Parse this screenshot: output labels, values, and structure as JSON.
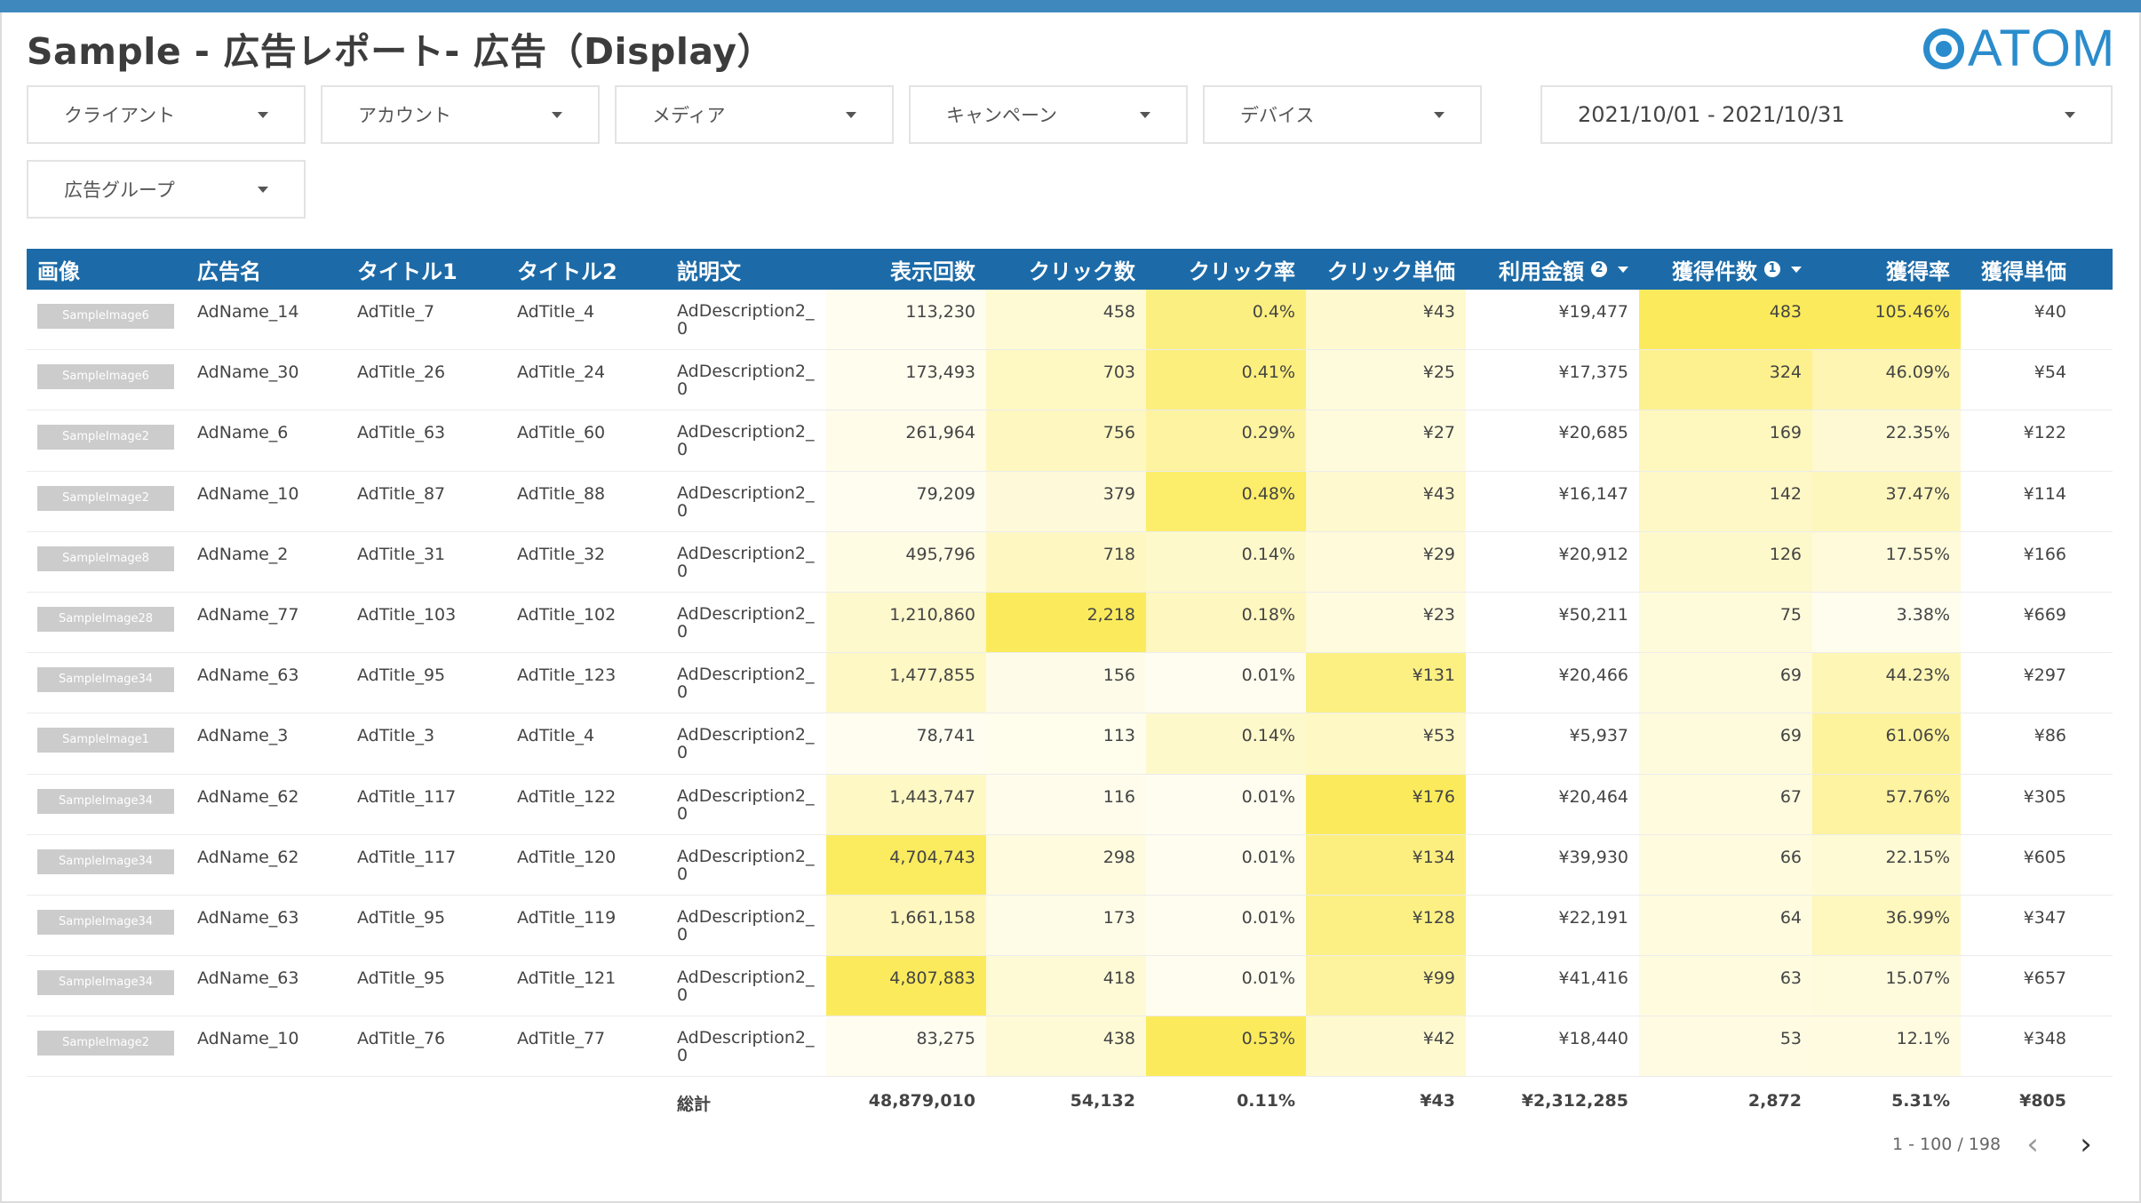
{
  "title": "Sample - 広告レポート- 広告（Display）",
  "logo": "ATOM",
  "filters": [
    {
      "label": "クライアント"
    },
    {
      "label": "アカウント"
    },
    {
      "label": "メディア"
    },
    {
      "label": "キャンペーン"
    },
    {
      "label": "デバイス"
    },
    {
      "label": "広告グループ"
    }
  ],
  "date_range": "2021/10/01 - 2021/10/31",
  "table": {
    "columns": [
      "画像",
      "広告名",
      "タイトル1",
      "タイトル2",
      "説明文",
      "表示回数",
      "クリック数",
      "クリック率",
      "クリック単価",
      "利用金額",
      "獲得件数",
      "獲得率",
      "獲得単価"
    ],
    "rows": [
      [
        "SampleImage6",
        "AdName_14",
        "AdTitle_7",
        "AdTitle_4",
        "AdDescription2_0",
        "113,230",
        "458",
        "0.4%",
        "¥43",
        "¥19,477",
        "483",
        "105.46%",
        "¥40"
      ],
      [
        "SampleImage6",
        "AdName_30",
        "AdTitle_26",
        "AdTitle_24",
        "AdDescription2_0",
        "173,493",
        "703",
        "0.41%",
        "¥25",
        "¥17,375",
        "324",
        "46.09%",
        "¥54"
      ],
      [
        "SampleImage2",
        "AdName_6",
        "AdTitle_63",
        "AdTitle_60",
        "AdDescription2_0",
        "261,964",
        "756",
        "0.29%",
        "¥27",
        "¥20,685",
        "169",
        "22.35%",
        "¥122"
      ],
      [
        "SampleImage2",
        "AdName_10",
        "AdTitle_87",
        "AdTitle_88",
        "AdDescription2_0",
        "79,209",
        "379",
        "0.48%",
        "¥43",
        "¥16,147",
        "142",
        "37.47%",
        "¥114"
      ],
      [
        "SampleImage8",
        "AdName_2",
        "AdTitle_31",
        "AdTitle_32",
        "AdDescription2_0",
        "495,796",
        "718",
        "0.14%",
        "¥29",
        "¥20,912",
        "126",
        "17.55%",
        "¥166"
      ],
      [
        "SampleImage28",
        "AdName_77",
        "AdTitle_103",
        "AdTitle_102",
        "AdDescription2_0",
        "1,210,860",
        "2,218",
        "0.18%",
        "¥23",
        "¥50,211",
        "75",
        "3.38%",
        "¥669"
      ],
      [
        "SampleImage34",
        "AdName_63",
        "AdTitle_95",
        "AdTitle_123",
        "AdDescription2_0",
        "1,477,855",
        "156",
        "0.01%",
        "¥131",
        "¥20,466",
        "69",
        "44.23%",
        "¥297"
      ],
      [
        "SampleImage1",
        "AdName_3",
        "AdTitle_3",
        "AdTitle_4",
        "AdDescription2_0",
        "78,741",
        "113",
        "0.14%",
        "¥53",
        "¥5,937",
        "69",
        "61.06%",
        "¥86"
      ],
      [
        "SampleImage34",
        "AdName_62",
        "AdTitle_117",
        "AdTitle_122",
        "AdDescription2_0",
        "1,443,747",
        "116",
        "0.01%",
        "¥176",
        "¥20,464",
        "67",
        "57.76%",
        "¥305"
      ],
      [
        "SampleImage34",
        "AdName_62",
        "AdTitle_117",
        "AdTitle_120",
        "AdDescription2_0",
        "4,704,743",
        "298",
        "0.01%",
        "¥134",
        "¥39,930",
        "66",
        "22.15%",
        "¥605"
      ],
      [
        "SampleImage34",
        "AdName_63",
        "AdTitle_95",
        "AdTitle_119",
        "AdDescription2_0",
        "1,661,158",
        "173",
        "0.01%",
        "¥128",
        "¥22,191",
        "64",
        "36.99%",
        "¥347"
      ],
      [
        "SampleImage34",
        "AdName_63",
        "AdTitle_95",
        "AdTitle_121",
        "AdDescription2_0",
        "4,807,883",
        "418",
        "0.01%",
        "¥99",
        "¥41,416",
        "63",
        "15.07%",
        "¥657"
      ],
      [
        "SampleImage2",
        "AdName_10",
        "AdTitle_76",
        "AdTitle_77",
        "AdDescription2_0",
        "83,275",
        "438",
        "0.53%",
        "¥42",
        "¥18,440",
        "53",
        "12.1%",
        "¥348"
      ]
    ],
    "totals": {
      "label": "総計",
      "values": [
        "48,879,010",
        "54,132",
        "0.11%",
        "¥43",
        "¥2,312,285",
        "2,872",
        "5.31%",
        "¥805"
      ]
    }
  },
  "pagination": {
    "text": "1 - 100 / 198",
    "prev": "‹",
    "next": "›"
  },
  "heat_color": "#fbe94e"
}
